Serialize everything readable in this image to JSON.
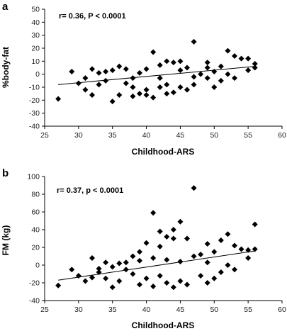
{
  "chart_data": [
    {
      "type": "scatter",
      "panel_label": "a",
      "xlabel": "Childhood-ARS",
      "ylabel": "%body-fat",
      "annotation": "r= 0.36, P < 0.0001",
      "xlim": [
        25,
        60
      ],
      "ylim": [
        -40,
        50
      ],
      "xticks": [
        25,
        30,
        35,
        40,
        45,
        50,
        55,
        60
      ],
      "yticks": [
        -40,
        -30,
        -20,
        -10,
        0,
        10,
        20,
        30,
        40,
        50
      ],
      "grid": false,
      "marker": "diamond",
      "marker_color": "#000000",
      "trendline": {
        "x": [
          27,
          56
        ],
        "y": [
          -8,
          6
        ]
      },
      "points": [
        [
          27,
          -19
        ],
        [
          29,
          2
        ],
        [
          31,
          -12
        ],
        [
          32,
          -16
        ],
        [
          33,
          -8
        ],
        [
          34,
          -5
        ],
        [
          35,
          -21
        ],
        [
          36,
          -16
        ],
        [
          37,
          -7
        ],
        [
          38,
          -3
        ],
        [
          39,
          1
        ],
        [
          40,
          4
        ],
        [
          41,
          17
        ],
        [
          42,
          7
        ],
        [
          43,
          10
        ],
        [
          44,
          9
        ],
        [
          45,
          10
        ],
        [
          46,
          5
        ],
        [
          47,
          25
        ],
        [
          48,
          0
        ],
        [
          49,
          5
        ],
        [
          50,
          2
        ],
        [
          51,
          6
        ],
        [
          52,
          18
        ],
        [
          53,
          14
        ],
        [
          54,
          12
        ],
        [
          55,
          12
        ],
        [
          56,
          8
        ],
        [
          56,
          5
        ],
        [
          55,
          3
        ],
        [
          53,
          -3
        ],
        [
          52,
          0
        ],
        [
          51,
          -5
        ],
        [
          50,
          -10
        ],
        [
          49,
          -3
        ],
        [
          47,
          -8
        ],
        [
          46,
          -12
        ],
        [
          45,
          -10
        ],
        [
          44,
          -14
        ],
        [
          43,
          -15
        ],
        [
          42,
          -10
        ],
        [
          41,
          -18
        ],
        [
          40,
          -12
        ],
        [
          39,
          -15
        ],
        [
          38,
          -10
        ],
        [
          37,
          4
        ],
        [
          36,
          6
        ],
        [
          35,
          3
        ],
        [
          34,
          2
        ],
        [
          33,
          1
        ],
        [
          32,
          4
        ],
        [
          31,
          -3
        ],
        [
          30,
          -7
        ],
        [
          38,
          -17
        ],
        [
          40,
          -16
        ],
        [
          43,
          -8
        ],
        [
          45,
          3
        ],
        [
          47,
          -2
        ],
        [
          49,
          9
        ],
        [
          42,
          -3
        ]
      ]
    },
    {
      "type": "scatter",
      "panel_label": "b",
      "xlabel": "Childhood-ARS",
      "ylabel": "FM (kg)",
      "annotation": "r= 0.37, p < 0.0001",
      "xlim": [
        25,
        60
      ],
      "ylim": [
        -40,
        100
      ],
      "xticks": [
        25,
        30,
        35,
        40,
        45,
        50,
        55,
        60
      ],
      "yticks": [
        -40,
        -20,
        0,
        20,
        40,
        60,
        80,
        100
      ],
      "grid": false,
      "marker": "diamond",
      "marker_color": "#000000",
      "trendline": {
        "x": [
          27,
          56
        ],
        "y": [
          -17,
          16
        ]
      },
      "points": [
        [
          27,
          -23
        ],
        [
          29,
          -5
        ],
        [
          31,
          -18
        ],
        [
          32,
          8
        ],
        [
          33,
          -8
        ],
        [
          34,
          -15
        ],
        [
          35,
          -25
        ],
        [
          36,
          -18
        ],
        [
          37,
          3
        ],
        [
          38,
          10
        ],
        [
          39,
          15
        ],
        [
          40,
          25
        ],
        [
          41,
          59
        ],
        [
          42,
          21
        ],
        [
          43,
          32
        ],
        [
          44,
          40
        ],
        [
          45,
          49
        ],
        [
          46,
          30
        ],
        [
          47,
          87
        ],
        [
          48,
          12
        ],
        [
          49,
          24
        ],
        [
          50,
          15
        ],
        [
          51,
          28
        ],
        [
          52,
          35
        ],
        [
          53,
          22
        ],
        [
          54,
          18
        ],
        [
          55,
          17
        ],
        [
          56,
          46
        ],
        [
          56,
          18
        ],
        [
          55,
          8
        ],
        [
          53,
          -5
        ],
        [
          52,
          0
        ],
        [
          51,
          -8
        ],
        [
          50,
          -15
        ],
        [
          49,
          -20
        ],
        [
          48,
          -12
        ],
        [
          46,
          -22
        ],
        [
          45,
          -18
        ],
        [
          44,
          -25
        ],
        [
          43,
          -20
        ],
        [
          42,
          -12
        ],
        [
          41,
          -24
        ],
        [
          40,
          -15
        ],
        [
          39,
          -22
        ],
        [
          38,
          -10
        ],
        [
          37,
          -5
        ],
        [
          36,
          2
        ],
        [
          35,
          -2
        ],
        [
          34,
          3
        ],
        [
          33,
          -4
        ],
        [
          32,
          -14
        ],
        [
          30,
          -12
        ],
        [
          39,
          5
        ],
        [
          41,
          8
        ],
        [
          43,
          6
        ],
        [
          45,
          4
        ],
        [
          47,
          10
        ],
        [
          49,
          3
        ],
        [
          44,
          30
        ],
        [
          42,
          38
        ]
      ]
    }
  ]
}
